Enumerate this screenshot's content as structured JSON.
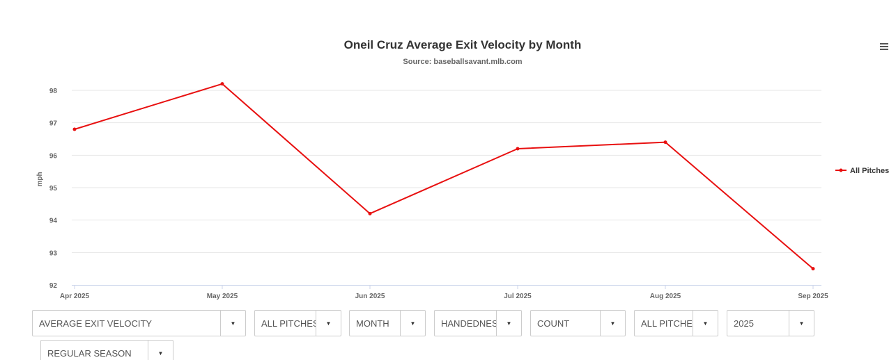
{
  "chart_data": {
    "type": "line",
    "title": "Oneil Cruz Average Exit Velocity by Month",
    "subtitle": "Source: baseballsavant.mlb.com",
    "xlabel": "",
    "ylabel": "mph",
    "categories": [
      "Apr 2025",
      "May 2025",
      "Jun 2025",
      "Jul 2025",
      "Aug 2025",
      "Sep 2025"
    ],
    "series": [
      {
        "name": "All Pitches",
        "color": "#e81010",
        "values": [
          96.8,
          98.2,
          94.2,
          96.2,
          96.4,
          92.5
        ]
      }
    ],
    "y_ticks": [
      92,
      93,
      94,
      95,
      96,
      97,
      98
    ],
    "ylim": [
      92,
      98.4
    ],
    "grid": true,
    "legend_position": "right"
  },
  "menu": {
    "icon": "hamburger-menu-icon"
  },
  "filters": [
    {
      "name": "stat-select",
      "label": "AVERAGE EXIT VELOCITY"
    },
    {
      "name": "pitch-type-select",
      "label": "ALL PITCHES"
    },
    {
      "name": "grouping-select",
      "label": "MONTH"
    },
    {
      "name": "handedness-select",
      "label": "HANDEDNESS"
    },
    {
      "name": "count-select",
      "label": "COUNT"
    },
    {
      "name": "pitch-result-select",
      "label": "ALL PITCHES"
    },
    {
      "name": "season-select",
      "label": "2025"
    },
    {
      "name": "game-type-select",
      "label": "REGULAR SEASON"
    }
  ],
  "dropdown_arrow": "▼"
}
